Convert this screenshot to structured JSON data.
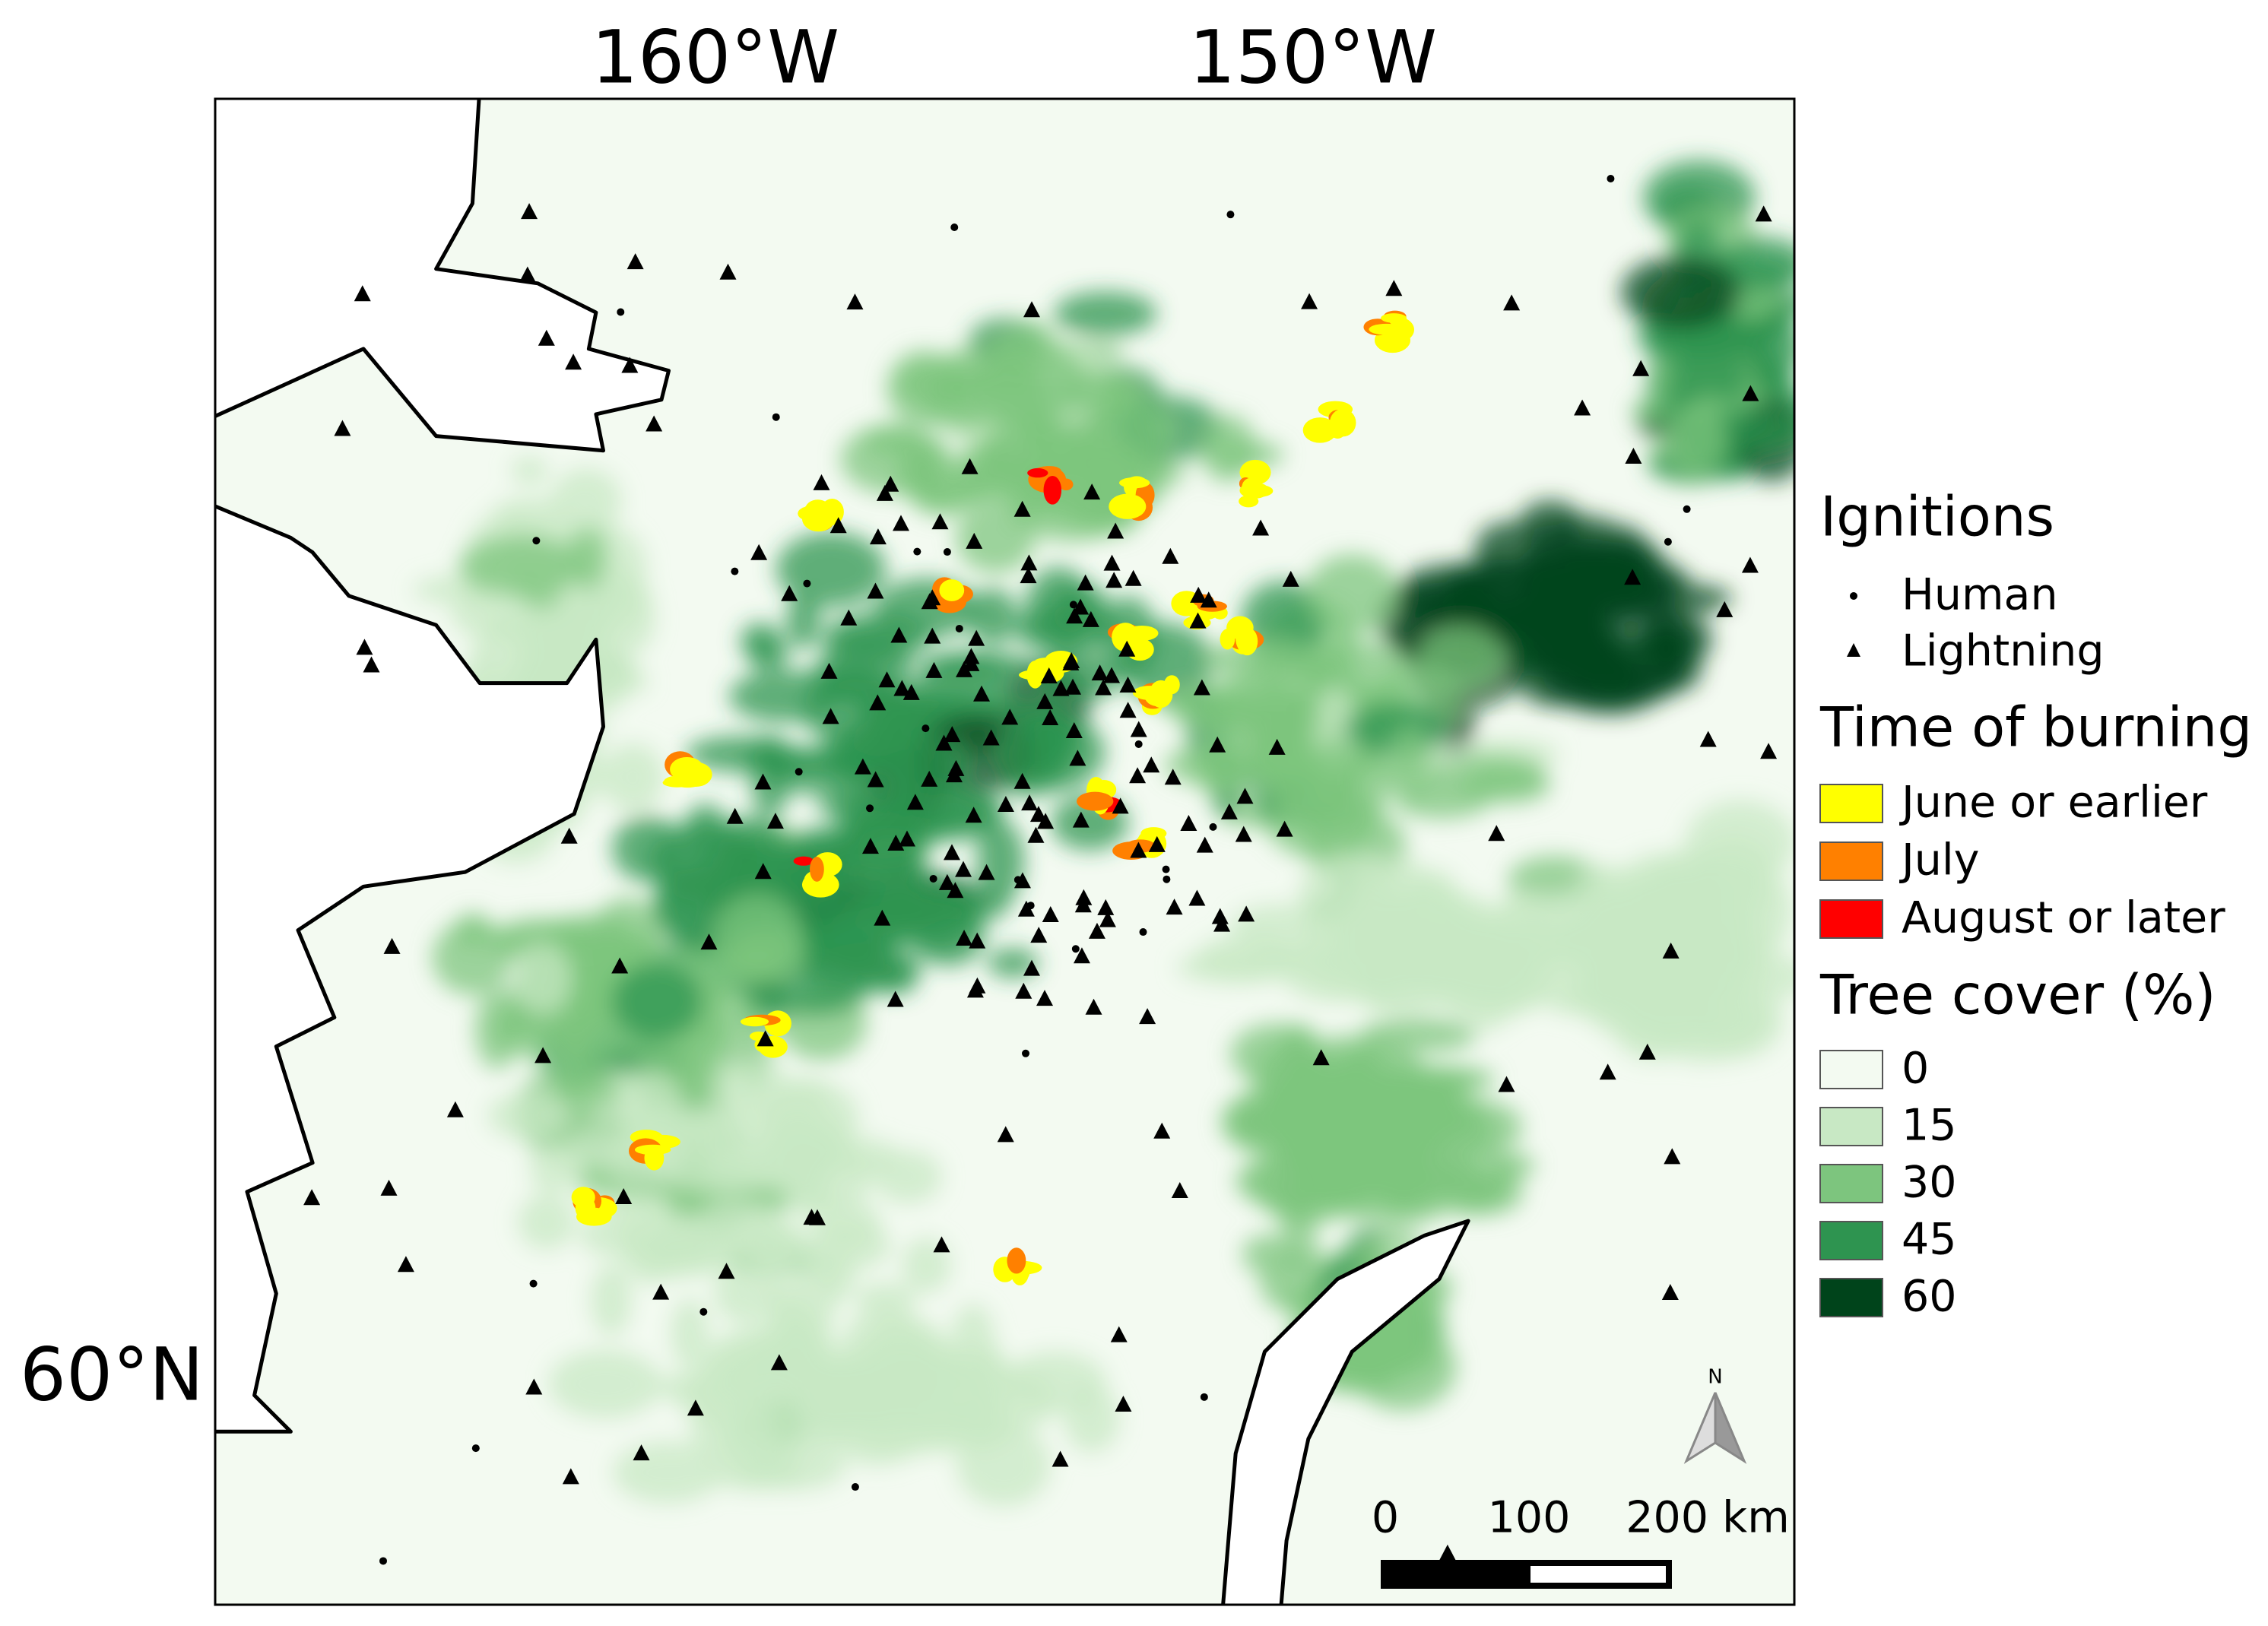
{
  "map": {
    "axis_labels": {
      "lon": [
        "160°W",
        "150°W"
      ],
      "lat": [
        "60°N"
      ]
    },
    "legend": {
      "ignitions": {
        "title": "Ignitions",
        "items": [
          "Human",
          "Lightning"
        ]
      },
      "burning": {
        "title": "Time of burning",
        "items": [
          {
            "label": "June or earlier",
            "color": "#ffff00"
          },
          {
            "label": "July",
            "color": "#ff8000"
          },
          {
            "label": "August or later",
            "color": "#ff0000"
          }
        ]
      },
      "tree_cover": {
        "title": "Tree cover (%)",
        "items": [
          {
            "label": 0,
            "color": "#f3faf1"
          },
          {
            "label": 15,
            "color": "#c8e8c4"
          },
          {
            "label": 30,
            "color": "#7dc57e"
          },
          {
            "label": 45,
            "color": "#2e9450"
          },
          {
            "label": 60,
            "color": "#00441b"
          }
        ]
      }
    },
    "scale_bar": {
      "labels": [
        0,
        100,
        "200 km"
      ]
    },
    "north_arrow": "N"
  }
}
